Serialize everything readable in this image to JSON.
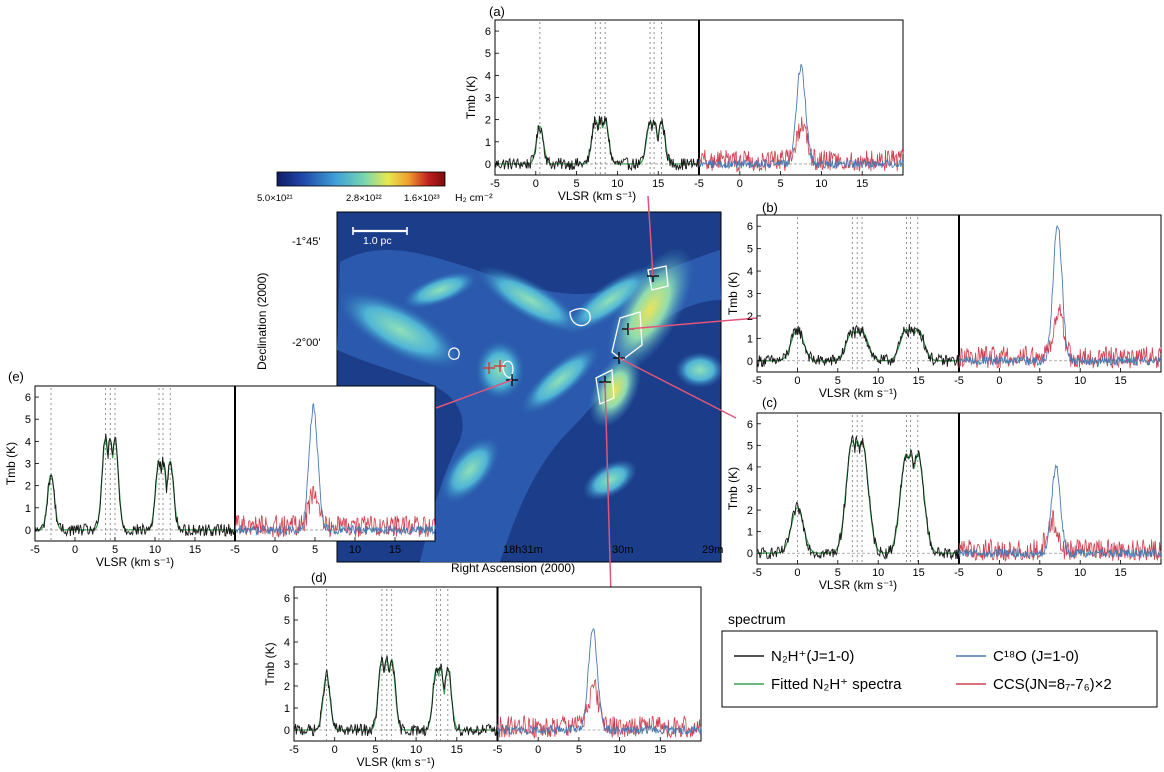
{
  "figure": {
    "colorbar": {
      "tick_labels": [
        "5.0×10²¹",
        "2.8×10²²",
        "1.6×10²³"
      ],
      "unit": "H₂ cm⁻²",
      "colors": [
        "#101c64",
        "#1f46a8",
        "#3fa0d8",
        "#78d6b0",
        "#e8e850",
        "#f0a030",
        "#c02020",
        "#7a0a0a"
      ]
    },
    "map": {
      "ylabel": "Declination (2000)",
      "xlabel": "Right Ascension (2000)",
      "ytick_labels": [
        "-1°45'",
        "-2°00'"
      ],
      "xtick_labels": [
        "18h31m",
        "30m",
        "29m"
      ],
      "scalebar_label": "1.0 pc",
      "leader_line_color": "#e0557a"
    },
    "legend": {
      "title": "spectrum",
      "entries": [
        {
          "label": "N₂H⁺(J=1-0)",
          "color": "#1a1a1a"
        },
        {
          "label": "C¹⁸O (J=1-0)",
          "color": "#4a7ab0"
        },
        {
          "label": "Fitted  N₂H⁺ spectra",
          "color": "#3aa050"
        },
        {
          "label": "CCS(JN=8₇-7₆)×2",
          "color": "#d04050"
        }
      ]
    }
  },
  "chart_data": {
    "type": "line",
    "description_axes": {
      "xlabel": "VLSR (km s⁻¹)",
      "ylabel": "Tmb (K)",
      "xtick_labels_left": [
        "-5",
        "0",
        "5",
        "10",
        "15"
      ],
      "xtick_labels_right": [
        "-5",
        "0",
        "5",
        "10",
        "15"
      ],
      "xlim": [
        -5,
        20
      ],
      "ytick_labels": [
        "0",
        "1",
        "2",
        "3",
        "4",
        "5",
        "6"
      ],
      "ylim": [
        -0.5,
        6.5
      ]
    },
    "panels": [
      {
        "id": "(a)",
        "vsys": 8.5,
        "n2h_peaks": [
          1.7,
          2.0,
          1.9
        ],
        "c18o_peak": 4.4,
        "c18o_v": 7.5,
        "ccs_peak": 1.6,
        "ccs_v": 7.6,
        "fit_wide": false
      },
      {
        "id": "(b)",
        "vsys": 8.0,
        "n2h_peaks": [
          1.4,
          1.3,
          1.4
        ],
        "c18o_peak": 6.1,
        "c18o_v": 7.2,
        "ccs_peak": 2.0,
        "ccs_v": 7.3,
        "fit_wide": true
      },
      {
        "id": "(c)",
        "vsys": 8.0,
        "n2h_peaks": [
          2.1,
          5.2,
          4.6
        ],
        "c18o_peak": 4.0,
        "c18o_v": 7.0,
        "ccs_peak": 1.4,
        "ccs_v": 6.5,
        "fit_wide": true
      },
      {
        "id": "(d)",
        "vsys": 7.0,
        "n2h_peaks": [
          2.5,
          3.2,
          2.8
        ],
        "c18o_peak": 4.6,
        "c18o_v": 6.7,
        "ccs_peak": 1.8,
        "ccs_v": 6.8,
        "fit_wide": false
      },
      {
        "id": "(e)",
        "vsys": 5.0,
        "n2h_peaks": [
          2.5,
          4.1,
          3.1
        ],
        "c18o_peak": 5.5,
        "c18o_v": 4.8,
        "ccs_peak": 1.5,
        "ccs_v": 4.8,
        "fit_wide": false
      }
    ]
  }
}
